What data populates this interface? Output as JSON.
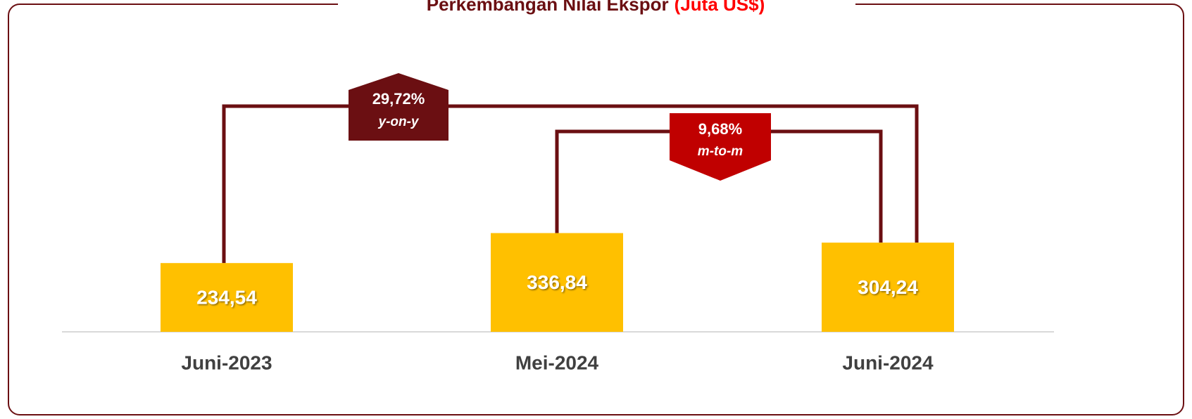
{
  "chart_data": {
    "type": "bar",
    "title": "Perkembangan Nilai Ekspor",
    "title_unit": "(Juta US$)",
    "categories": [
      "Juni-2023",
      "Mei-2024",
      "Juni-2024"
    ],
    "values": [
      234.54,
      336.84,
      304.24
    ],
    "value_labels": [
      "234,54",
      "336,84",
      "304,24"
    ],
    "color": "#ffc000",
    "ylim": [
      0,
      1000
    ],
    "annotations": [
      {
        "text": "29,72%",
        "subtext": "y-on-y",
        "color": "#6b0f12"
      },
      {
        "text": "9,68%",
        "subtext": "m-to-m",
        "color": "#c00000"
      }
    ]
  }
}
